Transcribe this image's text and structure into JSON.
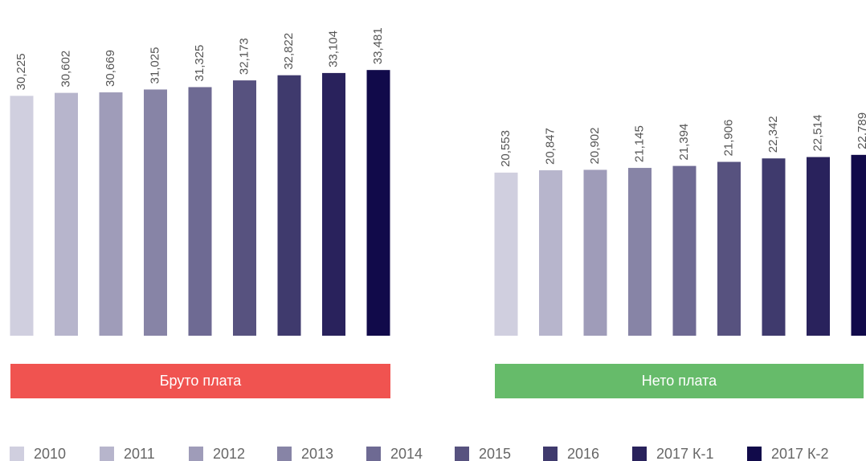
{
  "chart_data": {
    "type": "bar",
    "categories": [
      "Бруто плата",
      "Нето плата"
    ],
    "category_colors": [
      "#f05350",
      "#66bb6a"
    ],
    "ylim": [
      0,
      42000
    ],
    "series": [
      {
        "name": "2010",
        "color": "#d0cfdf",
        "values": [
          30225,
          20553
        ],
        "value_labels": [
          "30,225",
          "20,553"
        ]
      },
      {
        "name": "2011",
        "color": "#b7b5cc",
        "values": [
          30602,
          20847
        ],
        "value_labels": [
          "30,602",
          "20,847"
        ]
      },
      {
        "name": "2012",
        "color": "#9f9cb9",
        "values": [
          30669,
          20902
        ],
        "value_labels": [
          "30,669",
          "20,902"
        ]
      },
      {
        "name": "2013",
        "color": "#8784a6",
        "values": [
          31025,
          21145
        ],
        "value_labels": [
          "31,025",
          "21,145"
        ]
      },
      {
        "name": "2014",
        "color": "#6e6a93",
        "values": [
          31325,
          21394
        ],
        "value_labels": [
          "31,325",
          "21,394"
        ]
      },
      {
        "name": "2015",
        "color": "#57527f",
        "values": [
          32173,
          21906
        ],
        "value_labels": [
          "32,173",
          "21,906"
        ]
      },
      {
        "name": "2016",
        "color": "#3f3a6d",
        "values": [
          32822,
          22342
        ],
        "value_labels": [
          "32,822",
          "22,342"
        ]
      },
      {
        "name": "2017 К-1",
        "color": "#29225c",
        "values": [
          33104,
          22514
        ],
        "value_labels": [
          "33,104",
          "22,514"
        ]
      },
      {
        "name": "2017 К-2",
        "color": "#110a4a",
        "values": [
          33481,
          22789
        ],
        "value_labels": [
          "33,481",
          "22,789"
        ]
      }
    ]
  }
}
